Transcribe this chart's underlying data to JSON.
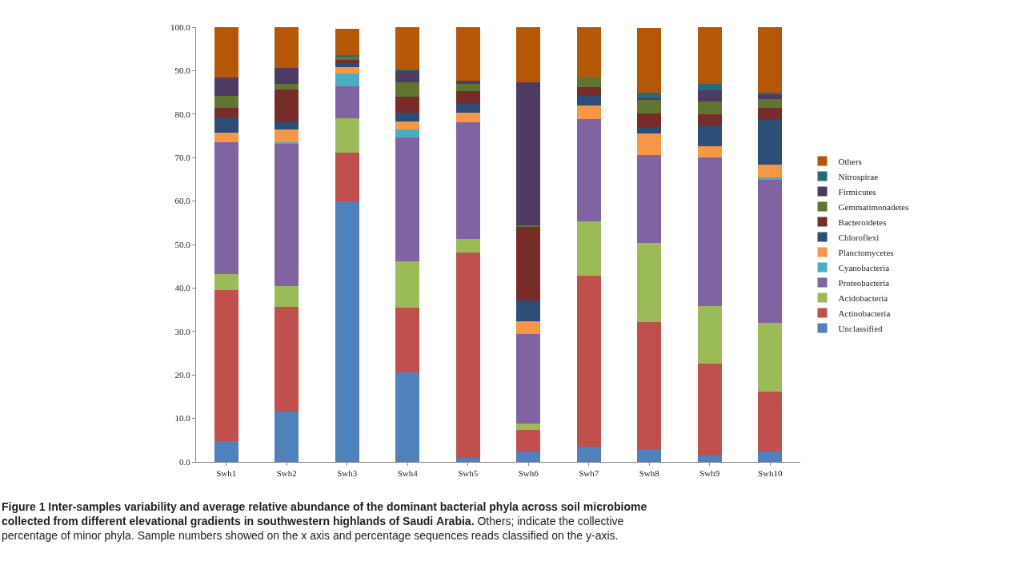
{
  "chart_data": {
    "type": "bar",
    "stacked": true,
    "title": "Figure 1 Inter-samples variability and average relative abundance of the dominant bacterial phyla across soil microbiome collected from different elevational gradients in southwestern highlands of Saudi Arabia.",
    "annotations": [
      "Others; indicate the collective percentage of minor phyla. Sample numbers showed on the x axis and percentage sequences reads classified on the y-axis."
    ],
    "categories": [
      "Swh1",
      "Swh2",
      "Swh3",
      "Swh4",
      "Swh5",
      "Swh6",
      "Swh7",
      "Swh8",
      "Swh9",
      "Swh10"
    ],
    "ylim": [
      0,
      100
    ],
    "yticks": [
      {
        "value": 0,
        "label": "0.0"
      },
      {
        "value": 10,
        "label": "10.0"
      },
      {
        "value": 20,
        "label": "20.0"
      },
      {
        "value": 30,
        "label": "30.0"
      },
      {
        "value": 40,
        "label": "40.0"
      },
      {
        "value": 50,
        "label": "50.0"
      },
      {
        "value": 60,
        "label": "60.0"
      },
      {
        "value": 70,
        "label": "70.0"
      },
      {
        "value": 80,
        "label": "80.0"
      },
      {
        "value": 90,
        "label": "90.0"
      },
      {
        "value": 100,
        "label": "100.0"
      }
    ],
    "grid": false,
    "legend": "right",
    "series": [
      {
        "name": "Unclassified",
        "color": "#4f81bd",
        "values": [
          4.8,
          11.5,
          60,
          20.6,
          1.0,
          2.3,
          3.5,
          3.0,
          1.5,
          2.3
        ]
      },
      {
        "name": "Actinobacteria",
        "color": "#c0504d",
        "values": [
          34.7,
          24.1,
          11.1,
          14.9,
          47.2,
          5.0,
          39.4,
          29.2,
          21.2,
          13.9
        ]
      },
      {
        "name": "Acidobacteria",
        "color": "#9bbb59",
        "values": [
          3.7,
          4.8,
          7.9,
          10.7,
          3.1,
          1.6,
          12.4,
          18.1,
          13.2,
          15.7
        ]
      },
      {
        "name": "Proteobacteria",
        "color": "#8064a2",
        "values": [
          30.3,
          32.8,
          7.4,
          28.4,
          26.8,
          20.6,
          23.6,
          20.3,
          34.1,
          32.9
        ]
      },
      {
        "name": "Cyanobacteria",
        "color": "#4bacc6",
        "values": [
          0,
          0.4,
          3.0,
          1.8,
          0,
          0,
          0,
          null,
          0,
          0.7
        ]
      },
      {
        "name": "Planctomycetes",
        "color": "#f79646",
        "values": [
          2.3,
          2.8,
          1.5,
          1.9,
          2.2,
          2.8,
          3.1,
          5.0,
          2.6,
          2.9
        ]
      },
      {
        "name": "Chloroflexi",
        "color": "#2c4d75",
        "values": [
          3.5,
          1.8,
          0.8,
          2.1,
          2.0,
          4.9,
          2.2,
          1.5,
          4.8,
          10.4
        ]
      },
      {
        "name": "Bacteroidetes",
        "color": "#772c2a",
        "values": [
          2.2,
          7.5,
          0.8,
          3.7,
          3.0,
          16.8,
          2.0,
          3.1,
          2.6,
          2.7
        ]
      },
      {
        "name": "Gemmatimonadetes",
        "color": "#5f7530",
        "values": [
          2.7,
          1.2,
          0.7,
          3.2,
          1.6,
          0.4,
          2.4,
          3.2,
          2.9,
          1.9
        ]
      },
      {
        "name": "Firmicutes",
        "color": "#4d3b62",
        "values": [
          4.2,
          3.7,
          null,
          2.5,
          0.8,
          32.9,
          0,
          0.3,
          2.5,
          1.3
        ]
      },
      {
        "name": "Nitrospirae",
        "color": "#276a7c",
        "values": [
          0,
          0,
          0.3,
          0.5,
          0,
          0,
          0,
          1.2,
          1.5,
          0.3
        ]
      },
      {
        "name": "Others",
        "color": "#b65708",
        "values": [
          11.6,
          9.4,
          6.2,
          9.7,
          12.3,
          12.7,
          11.4,
          14.9,
          13.1,
          15.0
        ]
      }
    ]
  }
}
